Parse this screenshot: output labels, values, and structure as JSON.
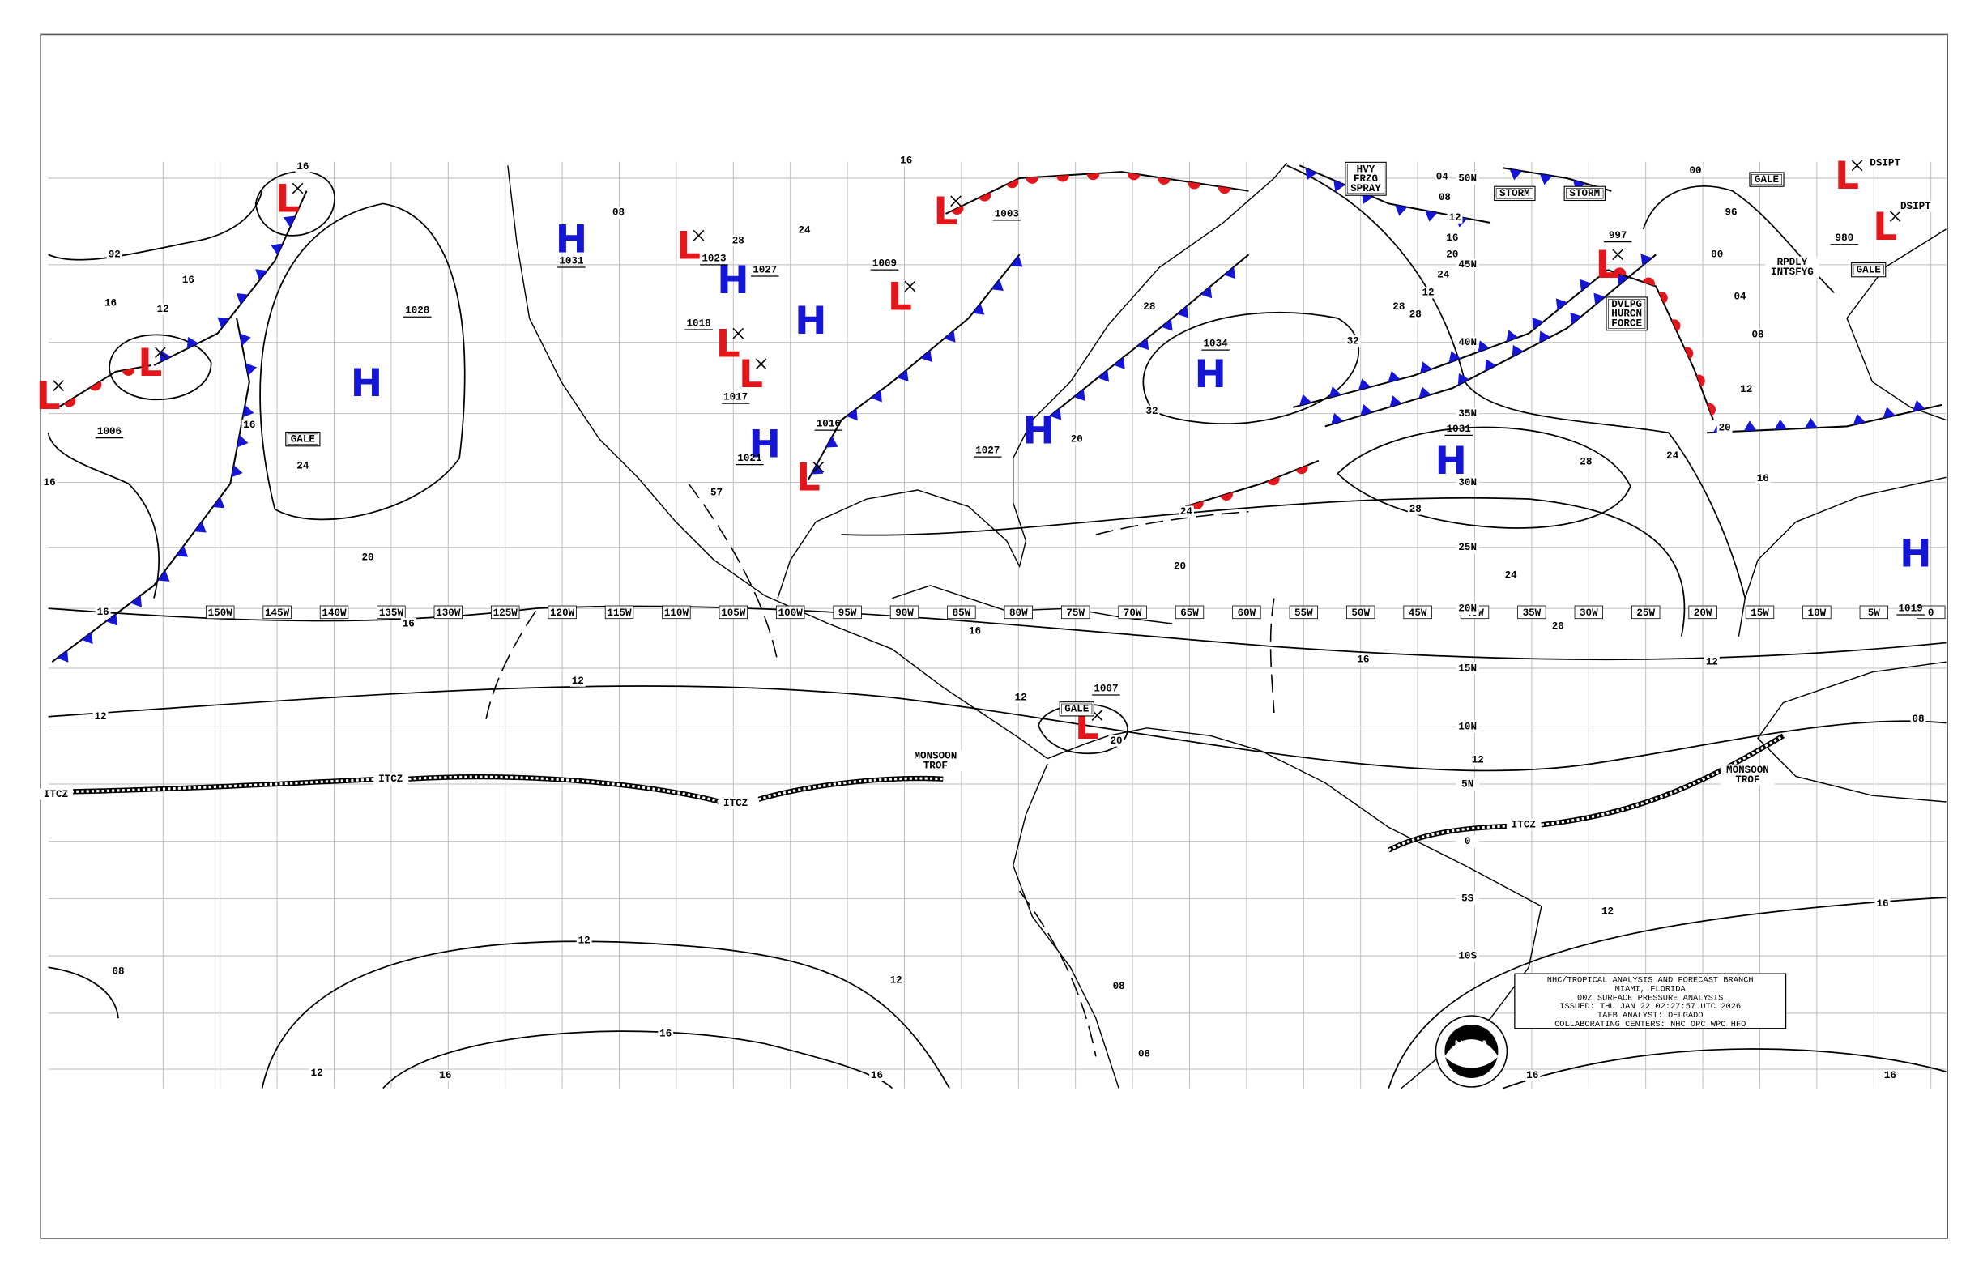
{
  "map": {
    "lon_labels": [
      "150W",
      "145W",
      "140W",
      "135W",
      "130W",
      "125W",
      "120W",
      "115W",
      "110W",
      "105W",
      "100W",
      "95W",
      "90W",
      "85W",
      "80W",
      "75W",
      "70W",
      "65W",
      "60W",
      "55W",
      "50W",
      "45W",
      "40W",
      "35W",
      "30W",
      "25W",
      "20W",
      "15W",
      "10W",
      "5W",
      "0"
    ],
    "lat_labels": [
      "50N",
      "45N",
      "40N",
      "35N",
      "30N",
      "25N",
      "20N",
      "15N",
      "10N",
      "5N",
      "0",
      "5S",
      "10S"
    ],
    "centers": [
      {
        "symbol": "H",
        "pressure": "1031"
      },
      {
        "symbol": "H",
        "pressure": "1028"
      },
      {
        "symbol": "H",
        "pressure": "1027"
      },
      {
        "symbol": "H"
      },
      {
        "symbol": "H",
        "pressure": "1021"
      },
      {
        "symbol": "H",
        "pressure": "1034"
      },
      {
        "symbol": "H",
        "pressure": "1027"
      },
      {
        "symbol": "H",
        "pressure": "1031"
      },
      {
        "symbol": "H",
        "pressure": "1019"
      },
      {
        "symbol": "L"
      },
      {
        "symbol": "L",
        "pressure": "1006"
      },
      {
        "symbol": "L"
      },
      {
        "symbol": "L",
        "pressure": "1023"
      },
      {
        "symbol": "L",
        "pressure": "1018"
      },
      {
        "symbol": "L",
        "pressure": "1017"
      },
      {
        "symbol": "L",
        "pressure": "1016"
      },
      {
        "symbol": "L",
        "pressure": "1009"
      },
      {
        "symbol": "L",
        "pressure": "1003"
      },
      {
        "symbol": "L",
        "pressure": "997"
      },
      {
        "symbol": "L"
      },
      {
        "symbol": "L",
        "pressure": "980"
      },
      {
        "symbol": "L",
        "pressure": "1007"
      }
    ],
    "isobar_labels": [
      "16",
      "92",
      "16",
      "16",
      "12",
      "16",
      "16",
      "24",
      "20",
      "16",
      "16",
      "12",
      "12",
      "12",
      "12",
      "08",
      "12",
      "16",
      "16",
      "16",
      "08",
      "08",
      "16",
      "12",
      "16",
      "12",
      "20",
      "24",
      "28",
      "24",
      "20",
      "28",
      "24",
      "32",
      "32",
      "28",
      "28",
      "28",
      "20",
      "20",
      "16",
      "12",
      "08",
      "04",
      "00",
      "96",
      "00",
      "04",
      "08",
      "12",
      "16",
      "20",
      "24",
      "12",
      "12",
      "16",
      "16",
      "16",
      "12",
      "08",
      "20",
      "24",
      "28",
      "08",
      "16",
      "57"
    ],
    "labels": [
      {
        "lines": [
          "GALE"
        ],
        "boxed": true
      },
      {
        "lines": [
          "GALE"
        ],
        "boxed": true
      },
      {
        "lines": [
          "STORM"
        ],
        "boxed": true
      },
      {
        "lines": [
          "STORM"
        ],
        "boxed": true
      },
      {
        "lines": [
          "GALE"
        ],
        "boxed": true
      },
      {
        "lines": [
          "GALE"
        ],
        "boxed": true
      },
      {
        "lines": [
          "HVY",
          "FRZG",
          "SPRAY"
        ],
        "boxed": true
      },
      {
        "lines": [
          "DVLPG",
          "HURCN",
          "FORCE"
        ],
        "boxed": true
      },
      {
        "lines": [
          "RPDLY",
          "INTSFYG"
        ],
        "boxed": false
      },
      {
        "lines": [
          "DSIPT"
        ],
        "boxed": false
      },
      {
        "lines": [
          "DSIPT"
        ],
        "boxed": false
      },
      {
        "lines": [
          "MONSOON",
          "TROF"
        ],
        "boxed": false
      },
      {
        "lines": [
          "MONSOON",
          "TROF"
        ],
        "boxed": false
      },
      {
        "lines": [
          "ITCZ"
        ],
        "boxed": false
      },
      {
        "lines": [
          "ITCZ"
        ],
        "boxed": false
      },
      {
        "lines": [
          "ITCZ"
        ],
        "boxed": false
      },
      {
        "lines": [
          "ITCZ"
        ],
        "boxed": false
      }
    ],
    "info_box": [
      "NHC/TROPICAL ANALYSIS AND FORECAST BRANCH",
      "MIAMI, FLORIDA",
      "00Z SURFACE PRESSURE ANALYSIS",
      "ISSUED: THU JAN 22 02:27:57 UTC 2026",
      "TAFB ANALYST: DELGADO",
      "COLLABORATING CENTERS: NHC OPC WPC HFO"
    ],
    "logo": "NOAA",
    "colors": {
      "high": "#1515d6",
      "low": "#e3161b",
      "cold_front": "#1515d6",
      "warm_front": "#e3161b"
    }
  }
}
